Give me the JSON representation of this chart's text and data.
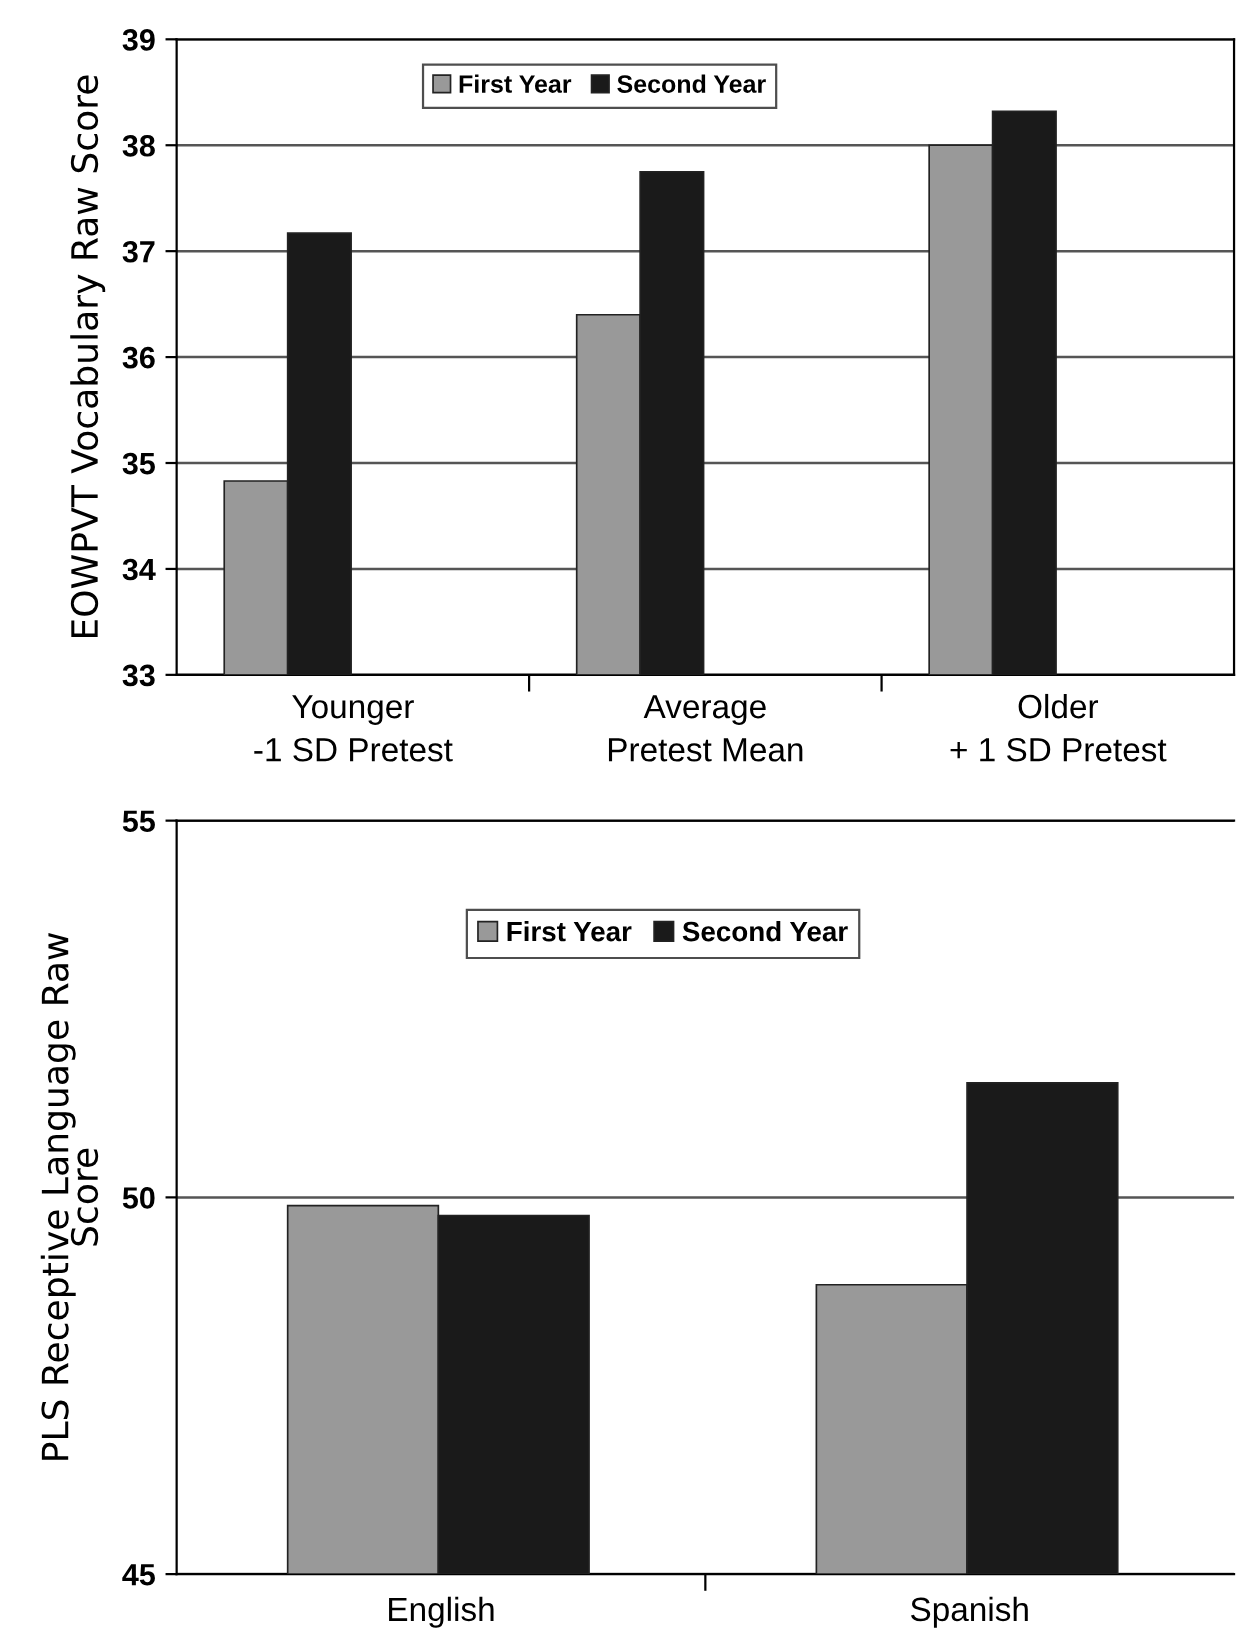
{
  "chart_data": [
    {
      "type": "bar",
      "ylabel": "EOWPVT Vocabulary Raw Score",
      "categories": [
        "Younger\n-1 SD Pretest",
        "Average\nPretest Mean",
        "Older\n+ 1 SD Pretest"
      ],
      "series": [
        {
          "name": "First Year",
          "color": "#999999",
          "values": [
            34.83,
            36.4,
            38.0
          ]
        },
        {
          "name": "Second Year",
          "color": "#1a1a1a",
          "values": [
            37.17,
            37.75,
            38.32
          ]
        }
      ],
      "ylim": [
        33,
        39
      ],
      "yticks": [
        33,
        34,
        35,
        36,
        37,
        38,
        39
      ],
      "grid": "y",
      "legend": "top"
    },
    {
      "type": "bar",
      "ylabel": "PLS Receptive Language Raw\nScore",
      "categories": [
        "English",
        "Spanish"
      ],
      "series": [
        {
          "name": "First Year",
          "color": "#999999",
          "values": [
            49.89,
            48.84
          ]
        },
        {
          "name": "Second Year",
          "color": "#1a1a1a",
          "values": [
            49.76,
            51.52
          ]
        }
      ],
      "ylim": [
        45,
        55
      ],
      "yticks": [
        45,
        50,
        55
      ],
      "grid": "y",
      "legend": "top"
    }
  ]
}
